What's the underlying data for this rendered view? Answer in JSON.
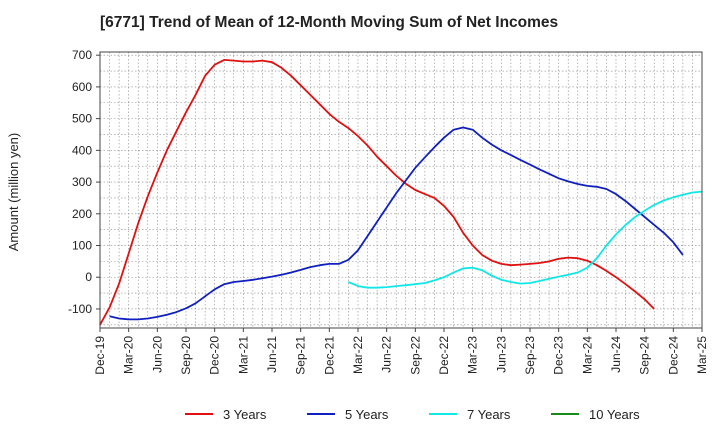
{
  "chart_data": {
    "type": "line",
    "title": "[6771]  Trend of Mean of 12-Month Moving Sum of Net Incomes",
    "ylabel": "Amount (million yen)",
    "xlabel": "",
    "ylim": [
      -160,
      710
    ],
    "yticks": [
      -100,
      0,
      100,
      200,
      300,
      400,
      500,
      600,
      700
    ],
    "x_tick_labels": [
      "Dec-19",
      "Mar-20",
      "Jun-20",
      "Sep-20",
      "Dec-20",
      "Mar-21",
      "Jun-21",
      "Sep-21",
      "Dec-21",
      "Mar-22",
      "Jun-22",
      "Sep-22",
      "Dec-22",
      "Mar-23",
      "Jun-23",
      "Sep-23",
      "Dec-23",
      "Mar-24",
      "Jun-24",
      "Sep-24",
      "Dec-24",
      "Mar-25"
    ],
    "grid": true,
    "legend_position": "bottom",
    "series": [
      {
        "name": "3 Years",
        "color": "#e01010",
        "start": "Dec-19",
        "values": [
          -150,
          -95,
          -20,
          75,
          170,
          255,
          330,
          400,
          460,
          520,
          575,
          635,
          670,
          685,
          683,
          680,
          680,
          683,
          678,
          660,
          635,
          605,
          575,
          545,
          515,
          490,
          470,
          445,
          415,
          380,
          350,
          320,
          295,
          275,
          262,
          250,
          225,
          190,
          140,
          100,
          70,
          52,
          42,
          38,
          40,
          42,
          45,
          50,
          58,
          62,
          60,
          52,
          38,
          20,
          0,
          -22,
          -45,
          -70,
          -100
        ]
      },
      {
        "name": "5 Years",
        "color": "#1020c0",
        "start": "Jan-20",
        "values": [
          -123,
          -130,
          -133,
          -133,
          -130,
          -125,
          -118,
          -110,
          -98,
          -82,
          -60,
          -38,
          -22,
          -15,
          -12,
          -8,
          -3,
          2,
          8,
          15,
          23,
          32,
          38,
          42,
          42,
          55,
          85,
          130,
          175,
          220,
          265,
          305,
          345,
          378,
          410,
          440,
          465,
          472,
          465,
          440,
          418,
          400,
          385,
          370,
          355,
          340,
          326,
          312,
          302,
          294,
          288,
          285,
          278,
          262,
          240,
          215,
          190,
          165,
          140,
          110,
          70
        ]
      },
      {
        "name": "7 Years",
        "color": "#10e8e8",
        "start": "Feb-22",
        "values": [
          -15,
          -28,
          -33,
          -33,
          -31,
          -28,
          -25,
          -22,
          -18,
          -10,
          0,
          15,
          28,
          30,
          22,
          5,
          -8,
          -15,
          -20,
          -18,
          -12,
          -5,
          2,
          8,
          15,
          30,
          60,
          100,
          135,
          165,
          190,
          210,
          228,
          242,
          252,
          260,
          267,
          270
        ]
      },
      {
        "name": "10 Years",
        "color": "#1a8a1a",
        "start": "",
        "values": []
      }
    ]
  }
}
